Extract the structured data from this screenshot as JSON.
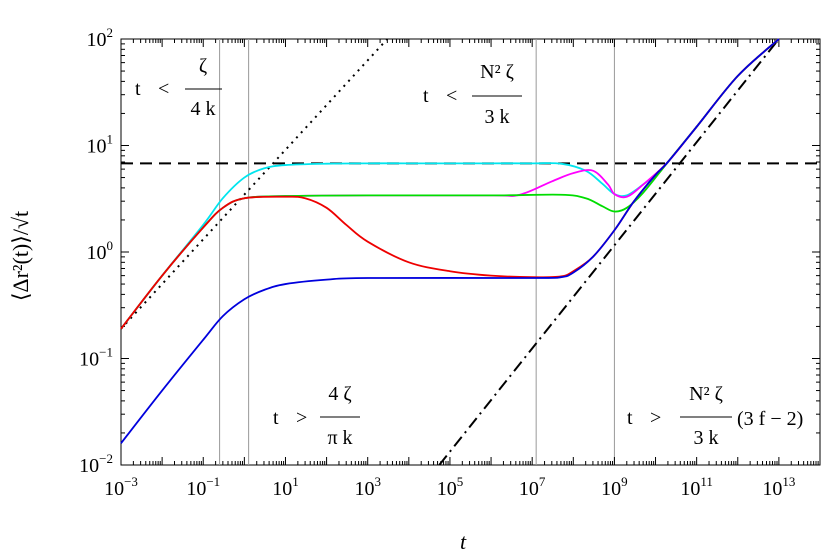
{
  "chart_data": {
    "type": "line",
    "xscale": "log",
    "yscale": "log",
    "xlim": [
      0.001,
      100000000000000.0
    ],
    "ylim": [
      0.01,
      100
    ],
    "xlabel": "t",
    "ylabel": "⟨Δr²(t)⟩/√t",
    "grid": false,
    "x_ticks": [
      {
        "base": "10",
        "exp": "−3",
        "value": 0.001
      },
      {
        "base": "10",
        "exp": "−1",
        "value": 0.1
      },
      {
        "base": "10",
        "exp": "1",
        "value": 10
      },
      {
        "base": "10",
        "exp": "3",
        "value": 1000
      },
      {
        "base": "10",
        "exp": "5",
        "value": 100000
      },
      {
        "base": "10",
        "exp": "7",
        "value": 10000000
      },
      {
        "base": "10",
        "exp": "9",
        "value": 1000000000
      },
      {
        "base": "10",
        "exp": "11",
        "value": 100000000000
      },
      {
        "base": "10",
        "exp": "13",
        "value": 10000000000000
      }
    ],
    "y_ticks": [
      {
        "base": "10",
        "exp": "−2",
        "value": 0.01
      },
      {
        "base": "10",
        "exp": "−1",
        "value": 0.1
      },
      {
        "base": "10",
        "exp": "0",
        "value": 1
      },
      {
        "base": "10",
        "exp": "1",
        "value": 10
      },
      {
        "base": "10",
        "exp": "2",
        "value": 100
      }
    ],
    "vertical_markers": [
      0.25,
      1.27,
      12500000,
      1000000000
    ],
    "reference_lines": [
      {
        "style": "dashed",
        "color": "#000000",
        "y_const": 6.8
      },
      {
        "style": "dotted",
        "color": "#000000",
        "points": [
          [
            0.001,
            0.19
          ],
          [
            3000,
            100
          ]
        ]
      },
      {
        "style": "dashdot",
        "color": "#000000",
        "points": [
          [
            55000,
            0.01
          ],
          [
            10000000000000.0,
            100
          ]
        ]
      }
    ],
    "series": [
      {
        "color": "#00e5ee",
        "points": [
          [
            0.001,
            0.19
          ],
          [
            0.01,
            0.6
          ],
          [
            0.1,
            1.8
          ],
          [
            0.3,
            3.2
          ],
          [
            1,
            5.0
          ],
          [
            3,
            6.1
          ],
          [
            10,
            6.55
          ],
          [
            100,
            6.75
          ],
          [
            1000,
            6.8
          ],
          [
            10000,
            6.8
          ],
          [
            100000,
            6.8
          ],
          [
            1000000,
            6.8
          ],
          [
            10000000,
            6.8
          ],
          [
            50000000,
            6.75
          ],
          [
            200000000,
            5.8
          ],
          [
            500000000,
            4.4
          ],
          [
            1000000000,
            3.5
          ],
          [
            2000000000,
            3.4
          ],
          [
            5000000000,
            4.3
          ],
          [
            10000000000,
            5.3
          ],
          [
            20000000000,
            7.0
          ],
          [
            100000000000,
            15
          ],
          [
            1000000000000,
            45
          ],
          [
            10000000000000,
            100
          ]
        ]
      },
      {
        "color": "#ff00ff",
        "points": [
          [
            0.001,
            0.19
          ],
          [
            0.01,
            0.6
          ],
          [
            0.1,
            1.7
          ],
          [
            0.3,
            2.6
          ],
          [
            1,
            3.2
          ],
          [
            10,
            3.35
          ],
          [
            1000,
            3.4
          ],
          [
            1000000,
            3.4
          ],
          [
            5000000,
            3.45
          ],
          [
            30000000,
            4.6
          ],
          [
            100000000,
            5.5
          ],
          [
            300000000,
            5.8
          ],
          [
            700000000,
            4.3
          ],
          [
            1000000000,
            3.5
          ],
          [
            2000000000,
            3.3
          ],
          [
            5000000000,
            4.3
          ],
          [
            20000000000,
            7.0
          ],
          [
            100000000000,
            15
          ],
          [
            1000000000000,
            45
          ],
          [
            10000000000000,
            100
          ]
        ]
      },
      {
        "color": "#00dd00",
        "points": [
          [
            0.001,
            0.19
          ],
          [
            0.01,
            0.6
          ],
          [
            0.1,
            1.7
          ],
          [
            0.3,
            2.6
          ],
          [
            1,
            3.2
          ],
          [
            10,
            3.35
          ],
          [
            1000,
            3.4
          ],
          [
            1000000,
            3.4
          ],
          [
            50000000,
            3.45
          ],
          [
            200000000,
            3.2
          ],
          [
            500000000,
            2.7
          ],
          [
            1000000000,
            2.4
          ],
          [
            2000000000,
            2.6
          ],
          [
            5000000000,
            3.6
          ],
          [
            20000000000,
            7.0
          ],
          [
            100000000000,
            15
          ],
          [
            1000000000000,
            45
          ],
          [
            10000000000000,
            100
          ]
        ]
      },
      {
        "color": "#ee0000",
        "points": [
          [
            0.001,
            0.19
          ],
          [
            0.01,
            0.6
          ],
          [
            0.1,
            1.7
          ],
          [
            0.3,
            2.6
          ],
          [
            1,
            3.2
          ],
          [
            10,
            3.3
          ],
          [
            30,
            3.2
          ],
          [
            100,
            2.6
          ],
          [
            300,
            1.8
          ],
          [
            1000,
            1.25
          ],
          [
            10000,
            0.8
          ],
          [
            100000,
            0.66
          ],
          [
            1000000,
            0.6
          ],
          [
            10000000,
            0.58
          ],
          [
            50000000,
            0.59
          ],
          [
            100000000,
            0.66
          ],
          [
            300000000,
            0.9
          ],
          [
            1000000000,
            1.6
          ],
          [
            3000000000,
            3.0
          ],
          [
            10000000000,
            5.3
          ],
          [
            20000000000,
            7.0
          ],
          [
            100000000000,
            15
          ],
          [
            1000000000000,
            45
          ],
          [
            10000000000000,
            100
          ]
        ]
      },
      {
        "color": "#0000dd",
        "points": [
          [
            0.001,
            0.016
          ],
          [
            0.01,
            0.05
          ],
          [
            0.1,
            0.15
          ],
          [
            0.3,
            0.25
          ],
          [
            1,
            0.36
          ],
          [
            3,
            0.44
          ],
          [
            10,
            0.5
          ],
          [
            100,
            0.55
          ],
          [
            1000,
            0.57
          ],
          [
            10000000,
            0.57
          ],
          [
            50000000,
            0.58
          ],
          [
            100000000,
            0.64
          ],
          [
            300000000,
            0.9
          ],
          [
            1000000000,
            1.6
          ],
          [
            3000000000,
            3.0
          ],
          [
            10000000000,
            5.3
          ],
          [
            20000000000,
            7.0
          ],
          [
            100000000000,
            15
          ],
          [
            1000000000000,
            45
          ],
          [
            10000000000000,
            100
          ]
        ]
      }
    ],
    "annotations": {
      "top_left": {
        "lhs": "t",
        "op": "<",
        "num": "ζ",
        "den": "4 k"
      },
      "top_mid": {
        "lhs": "t",
        "op": "<",
        "num": "N² ζ",
        "den": "3 k"
      },
      "bottom_left": {
        "lhs": "t",
        "op": ">",
        "num": "4 ζ",
        "den": "π k"
      },
      "bottom_right": {
        "lhs": "t",
        "op": ">",
        "num": "N² ζ",
        "den": "3 k",
        "suffix": "(3 f − 2)"
      }
    }
  }
}
